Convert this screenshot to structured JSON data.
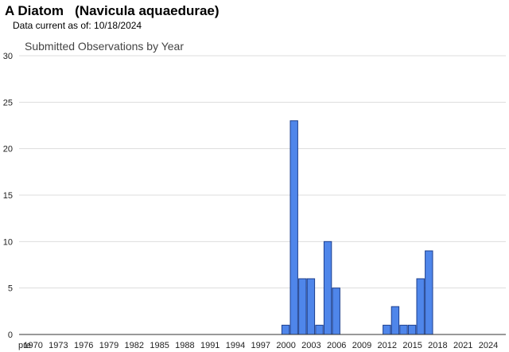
{
  "header": {
    "title": "A Diatom   (Navicula aquaedurae)",
    "data_current": "Data current as of: 10/18/2024"
  },
  "chart_data": {
    "type": "bar",
    "title": "Submitted Observations by Year",
    "xlabel": "",
    "ylabel": "",
    "ylim": [
      0,
      30
    ],
    "yticks": [
      0,
      5,
      10,
      15,
      20,
      25,
      30
    ],
    "grid": true,
    "bar_color": "#4f86ea",
    "bar_edge_color": "#1c3f8e",
    "categories": [
      "pre",
      "1970",
      "1971",
      "1972",
      "1973",
      "1974",
      "1975",
      "1976",
      "1977",
      "1978",
      "1979",
      "1980",
      "1981",
      "1982",
      "1983",
      "1984",
      "1985",
      "1986",
      "1987",
      "1988",
      "1989",
      "1990",
      "1991",
      "1992",
      "1993",
      "1994",
      "1995",
      "1996",
      "1997",
      "1998",
      "1999",
      "2000",
      "2001",
      "2002",
      "2003",
      "2004",
      "2005",
      "2006",
      "2007",
      "2008",
      "2009",
      "2010",
      "2011",
      "2012",
      "2013",
      "2014",
      "2015",
      "2016",
      "2017",
      "2018",
      "2019",
      "2020",
      "2021",
      "2022",
      "2023",
      "2024"
    ],
    "values": [
      0,
      0,
      0,
      0,
      0,
      0,
      0,
      0,
      0,
      0,
      0,
      0,
      0,
      0,
      0,
      0,
      0,
      0,
      0,
      0,
      0,
      0,
      0,
      0,
      0,
      0,
      0,
      0,
      0,
      0,
      0,
      1,
      23,
      6,
      6,
      1,
      10,
      5,
      0,
      0,
      0,
      0,
      0,
      1,
      3,
      1,
      1,
      6,
      9,
      0,
      0,
      0,
      0,
      0,
      0,
      0
    ],
    "xtick_labels": [
      "pre",
      "1970",
      "1973",
      "1976",
      "1979",
      "1982",
      "1985",
      "1988",
      "1991",
      "1994",
      "1997",
      "2000",
      "2003",
      "2006",
      "2009",
      "2012",
      "2015",
      "2018",
      "2021",
      "2024"
    ]
  }
}
